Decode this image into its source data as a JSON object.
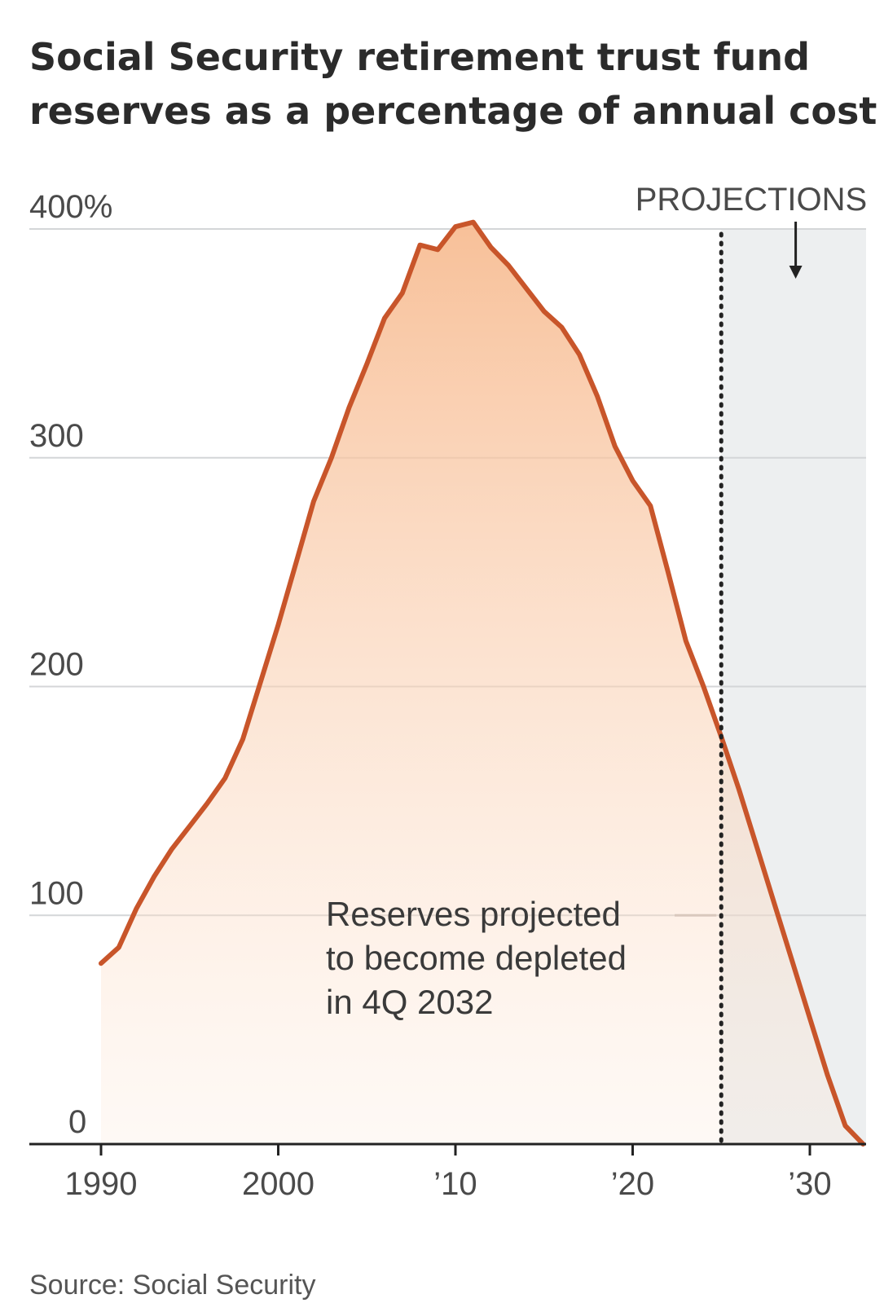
{
  "chart_data": {
    "type": "area",
    "title": "Social Security retirement trust fund",
    "subtitle": "reserves as a percentage of annual cost",
    "y_ticks": [
      {
        "value": 0,
        "label": "0"
      },
      {
        "value": 100,
        "label": "100"
      },
      {
        "value": 200,
        "label": "200"
      },
      {
        "value": 300,
        "label": "300"
      },
      {
        "value": 400,
        "label": "400%"
      }
    ],
    "x_ticks": [
      {
        "value": 1990,
        "label": "1990"
      },
      {
        "value": 2000,
        "label": "2000"
      },
      {
        "value": 2010,
        "label": "’10"
      },
      {
        "value": 2020,
        "label": "’20"
      },
      {
        "value": 2030,
        "label": "’30"
      }
    ],
    "xlim": [
      1986,
      2033
    ],
    "ylim": [
      0,
      400
    ],
    "grid": true,
    "projection_start": 2025,
    "projection_label": "PROJECTIONS",
    "annotation": [
      "Reserves projected",
      "to become depleted",
      "in 4Q 2032"
    ],
    "source": "Source: Social Security",
    "colors": {
      "line": "#c8552a",
      "fill": "#f7b98d",
      "projection_shade": "#edeff0"
    },
    "series": [
      {
        "x": [
          1990,
          1991,
          1992,
          1993,
          1994,
          1995,
          1996,
          1997,
          1998,
          1999,
          2000,
          2001,
          2002,
          2003,
          2004,
          2005,
          2006,
          2007,
          2008,
          2009,
          2010,
          2011,
          2012,
          2013,
          2014,
          2015,
          2016,
          2017,
          2018,
          2019,
          2020,
          2021,
          2022,
          2023,
          2024,
          2025,
          2026,
          2027,
          2028,
          2029,
          2030,
          2031,
          2032,
          2033
        ],
        "values": [
          79,
          86,
          103,
          117,
          129,
          139,
          149,
          160,
          177,
          202,
          227,
          254,
          281,
          300,
          322,
          341,
          361,
          372,
          393,
          391,
          401,
          403,
          392,
          384,
          374,
          364,
          357,
          345,
          327,
          305,
          290,
          279,
          250,
          220,
          200,
          178,
          155,
          130,
          105,
          80,
          55,
          30,
          8,
          0
        ]
      }
    ]
  }
}
